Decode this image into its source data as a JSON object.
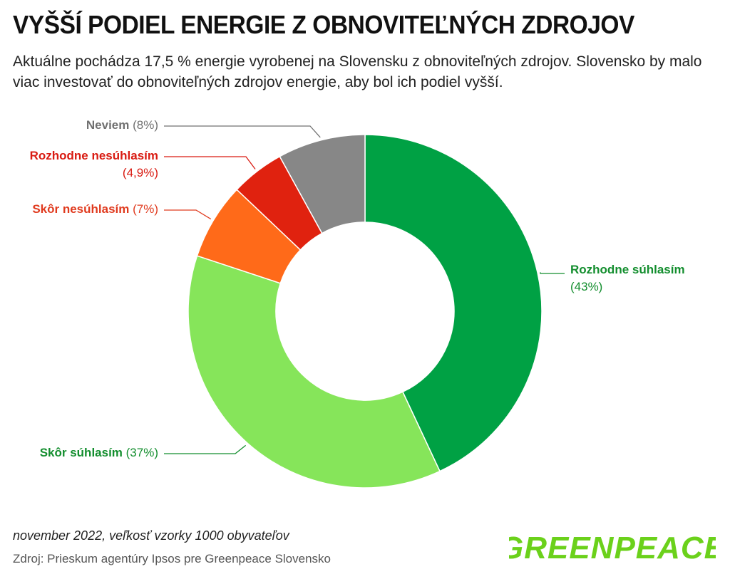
{
  "header": {
    "title": "VYŠŠÍ PODIEL ENERGIE Z OBNOVITEĽNÝCH ZDROJOV",
    "subtitle": "Aktuálne pochádza 17,5 % energie vyrobenej na Slovensku z obnoviteľných zdrojov. Slovensko by malo viac investovať do obnoviteľných zdrojov energie, aby bol ich podiel vyšší."
  },
  "chart_data": {
    "type": "pie",
    "variant": "donut",
    "legend": "none",
    "slices": [
      {
        "label": "Rozhodne súhlasím",
        "value": 43,
        "value_text": "(43%)",
        "color": "#00A144",
        "label_color": "#138E2E"
      },
      {
        "label": "Skôr súhlasím",
        "value": 37,
        "value_text": "(37%)",
        "color": "#86E55A",
        "label_color": "#138E2E"
      },
      {
        "label": "Skôr nesúhlasím",
        "value": 7,
        "value_text": "(7%)",
        "color": "#FF6A19",
        "label_color": "#E03A1E"
      },
      {
        "label": "Rozhodne nesúhlasím",
        "value": 4.9,
        "value_text": "(4,9%)",
        "color": "#E0220F",
        "label_color": "#D91B12"
      },
      {
        "label": "Neviem",
        "value": 8,
        "value_text": "(8%)",
        "color": "#878787",
        "label_color": "#707070"
      }
    ]
  },
  "footer": {
    "date_note": "november 2022, veľkosť vzorky 1000 obyvateľov",
    "source": "Zdroj: Prieskum agentúry Ipsos pre Greenpeace Slovensko"
  },
  "logo": {
    "text": "GREENPEACE",
    "color": "#6BD11B"
  }
}
